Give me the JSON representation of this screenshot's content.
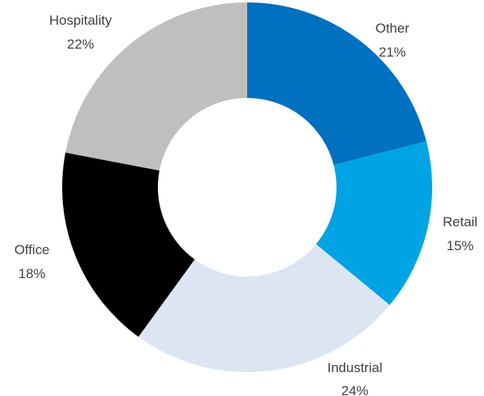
{
  "chart_data": {
    "type": "pie",
    "variant": "donut",
    "title": "",
    "legend": "none",
    "slices": [
      {
        "label": "Other",
        "value": 21,
        "value_label": "21%",
        "color": "#0070c0"
      },
      {
        "label": "Retail",
        "value": 15,
        "value_label": "15%",
        "color": "#00a3e4"
      },
      {
        "label": "Industrial",
        "value": 24,
        "value_label": "24%",
        "color": "#dce6f2"
      },
      {
        "label": "Office",
        "value": 18,
        "value_label": "18%",
        "color": "#000000"
      },
      {
        "label": "Hospitality",
        "value": 22,
        "value_label": "22%",
        "color": "#bfbfbf"
      }
    ]
  }
}
